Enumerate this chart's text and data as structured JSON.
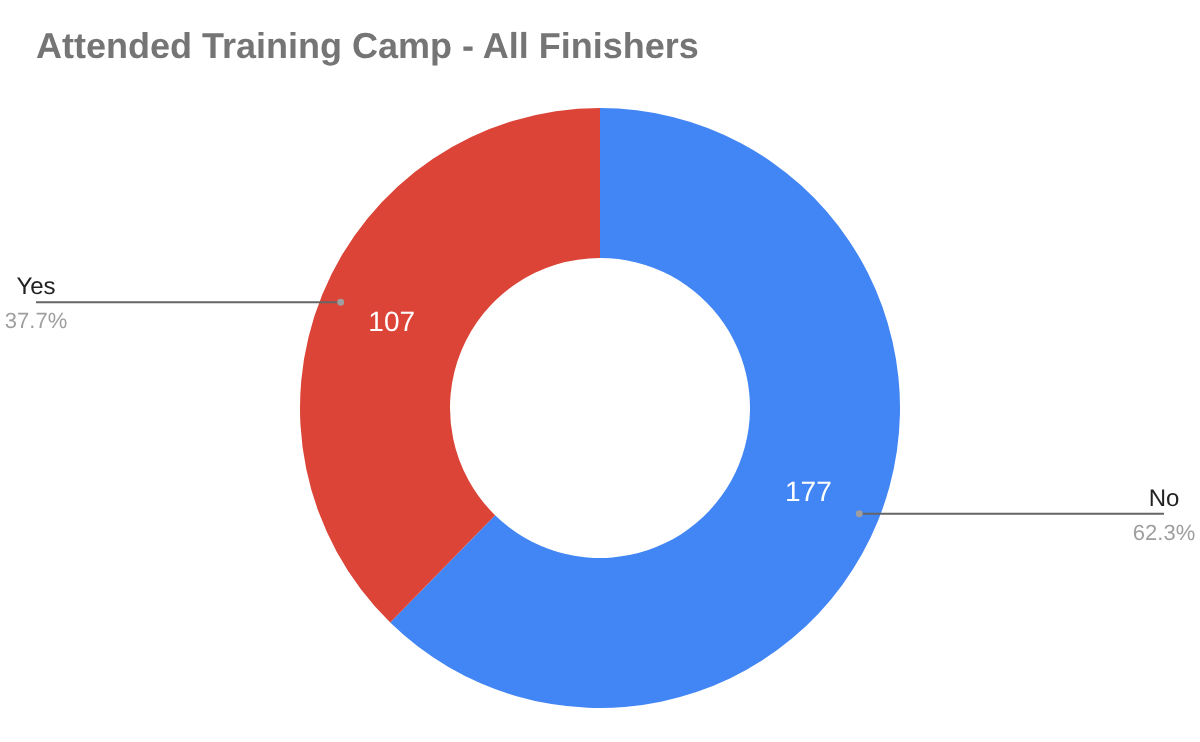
{
  "chart_data": {
    "type": "donut",
    "title": "Attended Training Camp - All Finishers",
    "categories": [
      "No",
      "Yes"
    ],
    "values": [
      177,
      107
    ],
    "colors": [
      "#4285f4",
      "#db4437"
    ],
    "data_labels": true,
    "legend": false,
    "annotations": [
      "62.3%",
      "37.7%"
    ]
  }
}
